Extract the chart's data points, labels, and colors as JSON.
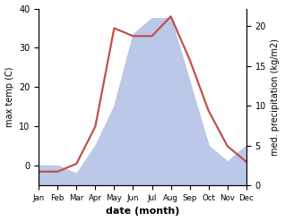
{
  "months": [
    "Jan",
    "Feb",
    "Mar",
    "Apr",
    "May",
    "Jun",
    "Jul",
    "Aug",
    "Sep",
    "Oct",
    "Nov",
    "Dec"
  ],
  "temp": [
    -1.5,
    -1.5,
    0.5,
    10,
    35,
    33,
    33,
    38,
    27,
    14,
    5,
    1
  ],
  "precip": [
    2.5,
    2.5,
    1.5,
    5,
    10,
    19,
    21,
    21,
    13,
    5,
    3,
    5
  ],
  "temp_color": "#c0514a",
  "precip_fill_color": "#bbc8e8",
  "ylim_temp": [
    -5,
    40
  ],
  "ylim_precip": [
    0,
    22.2
  ],
  "ylabel_left": "max temp (C)",
  "ylabel_right": "med. precipitation (kg/m2)",
  "xlabel": "date (month)",
  "yticks_left": [
    0,
    10,
    20,
    30,
    40
  ],
  "yticks_right": [
    0,
    5,
    10,
    15,
    20
  ],
  "figsize": [
    3.18,
    2.47
  ],
  "dpi": 100
}
